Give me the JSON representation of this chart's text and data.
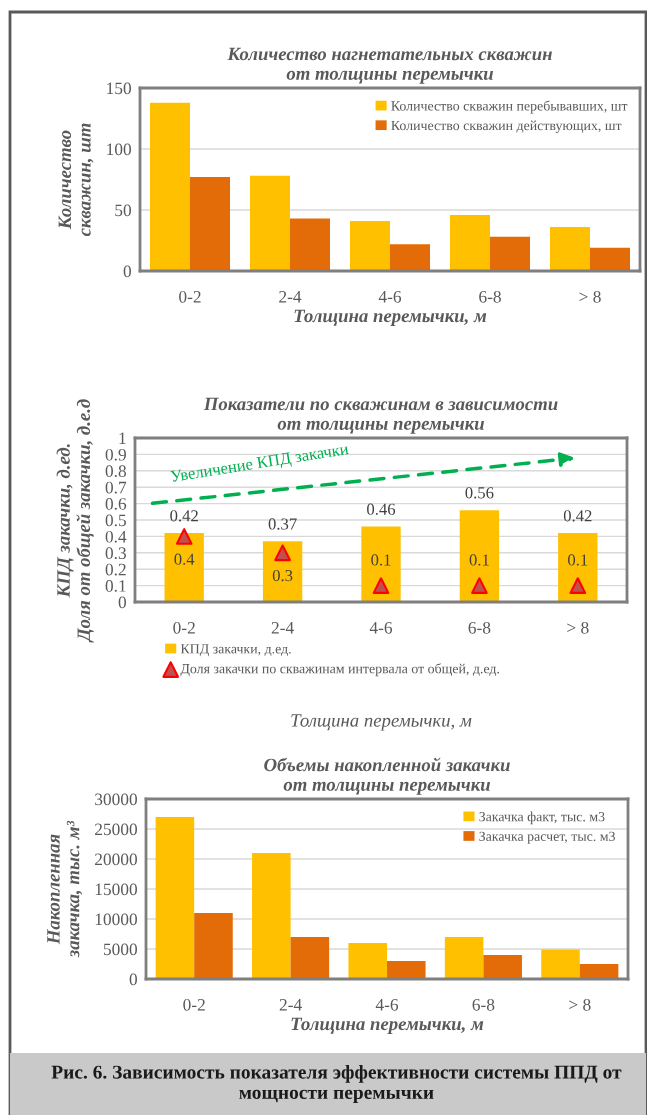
{
  "chart_data": [
    {
      "type": "bar",
      "title": "Количество нагнетательных скважин\nот толщины перемычки",
      "xlabel": "Толщина перемычки, м",
      "ylabel": "Количество\nскважин, шт",
      "categories": [
        "0-2",
        "2-4",
        "4-6",
        "6-8",
        "> 8"
      ],
      "series": [
        {
          "name": "Количество скважин перебывавших, шт",
          "color": "#ffc000",
          "values": [
            138,
            78,
            41,
            46,
            36
          ]
        },
        {
          "name": "Количество скважин действующих, шт",
          "color": "#e36c09",
          "values": [
            77,
            43,
            22,
            28,
            19
          ]
        }
      ],
      "ylim": [
        0,
        150
      ],
      "yticks": [
        0,
        50,
        100,
        150
      ],
      "grid": "y",
      "legend": "top right"
    },
    {
      "type": "bar",
      "title": "Показатели по скважинам в зависимости\nот толщины перемычки",
      "xlabel": "Толщина перемычки, м",
      "ylabel": "КПД закачки, д.ед.\nДоля от общей закачки, д.е.д",
      "categories": [
        "0-2",
        "2-4",
        "4-6",
        "6-8",
        "> 8"
      ],
      "series": [
        {
          "name": "КПД закачки, д.ед.",
          "type": "bar",
          "color": "#ffc000",
          "values": [
            0.42,
            0.37,
            0.46,
            0.56,
            0.42
          ]
        },
        {
          "name": "Доля закачки по скважинам интервала от общей, д.ед.",
          "type": "scatter",
          "marker": "triangle",
          "color": "#c0504d",
          "values": [
            0.4,
            0.3,
            0.1,
            0.1,
            0.1
          ]
        }
      ],
      "ylim": [
        0,
        1
      ],
      "yticks": [
        0,
        0.1,
        0.2,
        0.3,
        0.4,
        0.5,
        0.6,
        0.7,
        0.8,
        0.9,
        1
      ],
      "grid": "y",
      "legend": "bottom",
      "data_labels": true,
      "annotations": [
        "Увеличение КПД закачки"
      ]
    },
    {
      "type": "bar",
      "title": "Объемы накопленной закачки\nот толщины перемычки",
      "xlabel": "Толщина перемычки, м",
      "ylabel": "Накопленная\nзакачка, тыс. м³",
      "categories": [
        "0-2",
        "2-4",
        "4-6",
        "6-8",
        "> 8"
      ],
      "series": [
        {
          "name": "Закачка факт, тыс. м3",
          "color": "#ffc000",
          "values": [
            27000,
            21000,
            6000,
            7000,
            4900
          ]
        },
        {
          "name": "Закачка расчет, тыс. м3",
          "color": "#e36c09",
          "values": [
            11000,
            7000,
            3000,
            4000,
            2500
          ]
        }
      ],
      "ylim": [
        0,
        30000
      ],
      "yticks": [
        0,
        5000,
        10000,
        15000,
        20000,
        25000,
        30000
      ],
      "grid": "y",
      "legend": "top right",
      "annotations": [
        "Рис. 6. Зависимость показателя эффективности системы ППД от мощности перемычки"
      ]
    }
  ]
}
